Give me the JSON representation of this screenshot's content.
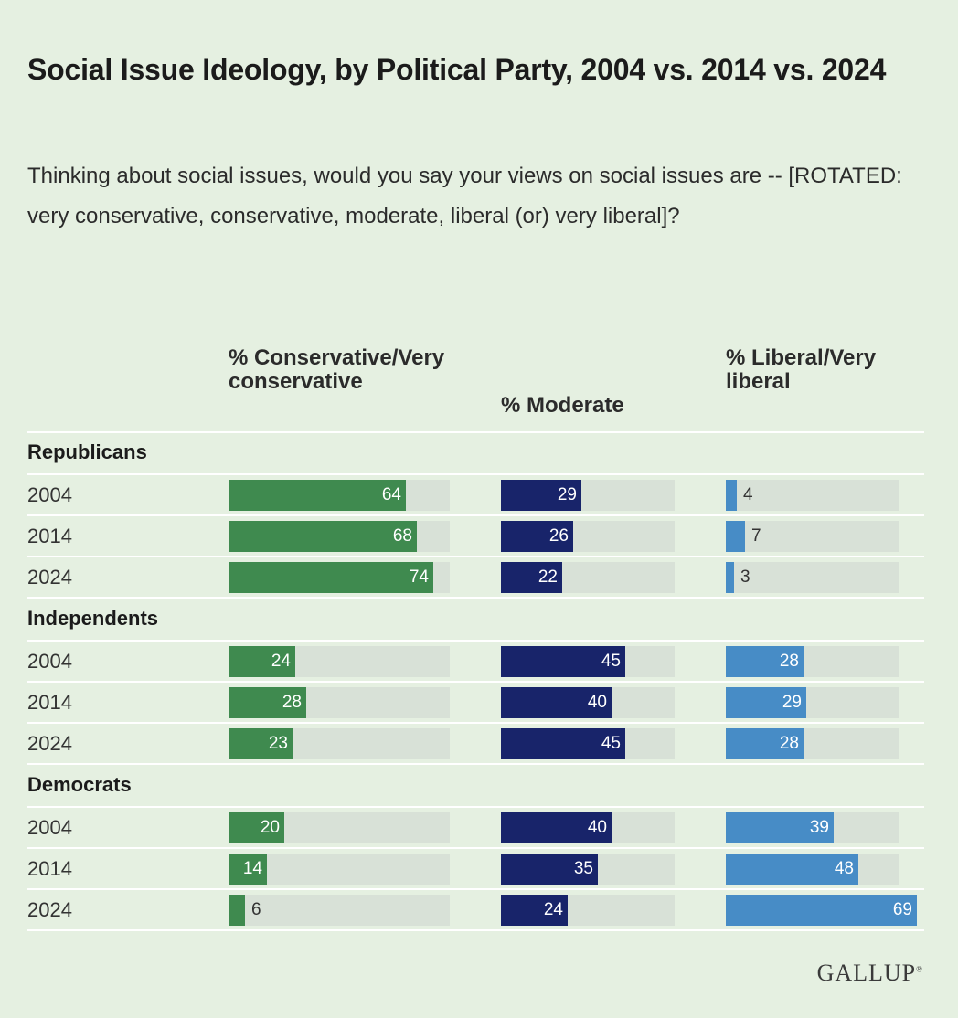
{
  "title": "Social Issue Ideology, by Political Party, 2004 vs. 2014 vs. 2024",
  "subtitle": "Thinking about social issues, would you say your views on social issues are -- [ROTATED: very conservative, conservative, moderate, liberal (or) very liberal]?",
  "columns": [
    {
      "label": "% Conservative/Very conservative",
      "color": "#3f8a4f"
    },
    {
      "label": "% Moderate",
      "color": "#18246a"
    },
    {
      "label": "% Liberal/Very liberal",
      "color": "#478cc6"
    }
  ],
  "track_color": "#d8e1d7",
  "logo": "GALLUP",
  "chart_data": {
    "type": "bar",
    "orientation": "horizontal",
    "title": "Social Issue Ideology, by Political Party, 2004 vs. 2014 vs. 2024",
    "xlim": [
      0,
      100
    ],
    "series_names": [
      "% Conservative/Very conservative",
      "% Moderate",
      "% Liberal/Very liberal"
    ],
    "groups": [
      {
        "name": "Republicans",
        "rows": [
          {
            "year": "2004",
            "values": [
              64,
              29,
              4
            ]
          },
          {
            "year": "2014",
            "values": [
              68,
              26,
              7
            ]
          },
          {
            "year": "2024",
            "values": [
              74,
              22,
              3
            ]
          }
        ]
      },
      {
        "name": "Independents",
        "rows": [
          {
            "year": "2004",
            "values": [
              24,
              45,
              28
            ]
          },
          {
            "year": "2014",
            "values": [
              28,
              40,
              29
            ]
          },
          {
            "year": "2024",
            "values": [
              23,
              45,
              28
            ]
          }
        ]
      },
      {
        "name": "Democrats",
        "rows": [
          {
            "year": "2004",
            "values": [
              20,
              40,
              39
            ]
          },
          {
            "year": "2014",
            "values": [
              14,
              35,
              48
            ]
          },
          {
            "year": "2024",
            "values": [
              6,
              24,
              69
            ]
          }
        ]
      }
    ]
  }
}
